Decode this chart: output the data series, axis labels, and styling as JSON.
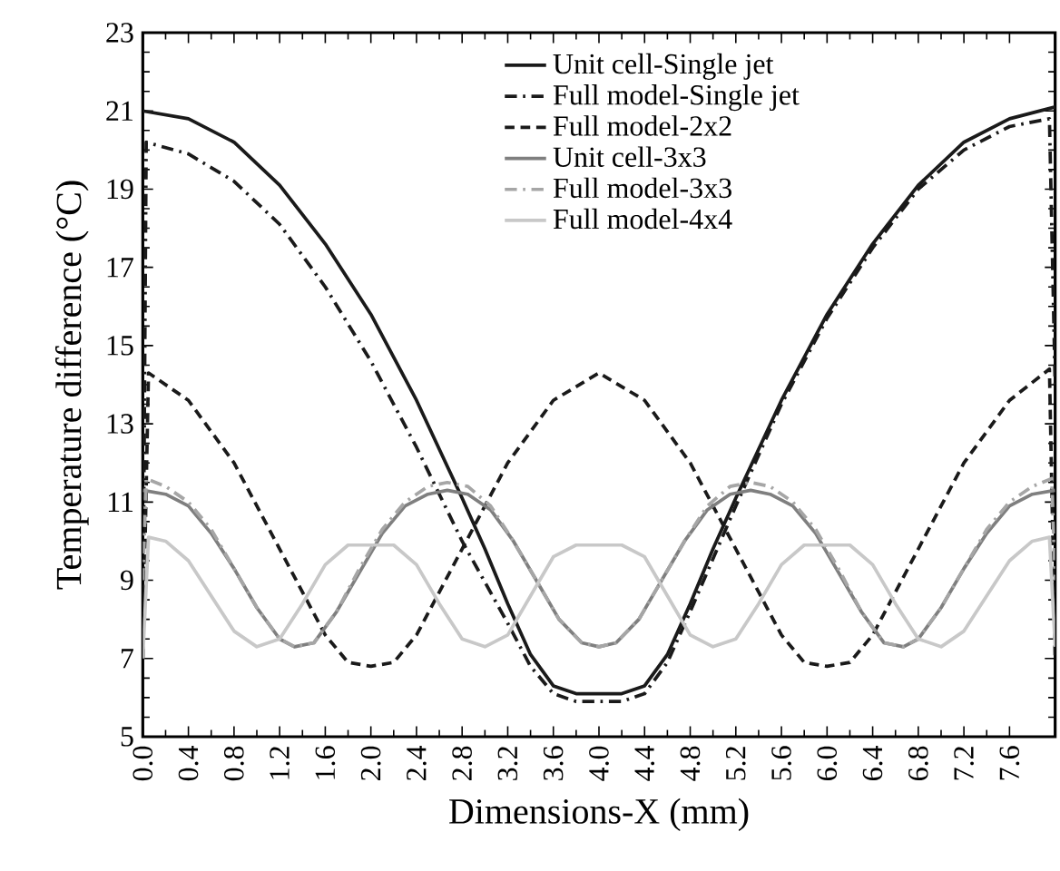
{
  "chart_data": {
    "type": "line",
    "xlabel": "Dimensions-X (mm)",
    "ylabel": "Temperature difference (°C)",
    "xlim": [
      0,
      8
    ],
    "ylim": [
      5,
      23
    ],
    "xticks": [
      {
        "value": 0,
        "label": "0.0"
      },
      0.4,
      0.8,
      1.2,
      1.6,
      {
        "value": 2,
        "label": "2.0"
      },
      2.4,
      2.8,
      3.2,
      3.6,
      {
        "value": 4,
        "label": "4.0"
      },
      4.4,
      4.8,
      5.2,
      5.6,
      {
        "value": 6,
        "label": "6.0"
      },
      6.4,
      6.8,
      7.2,
      7.6
    ],
    "yticks": [
      5,
      7,
      9,
      11,
      13,
      15,
      17,
      19,
      21,
      23
    ],
    "legend": "top",
    "grid": false,
    "marker": "none",
    "series": [
      {
        "name": "Unit cell-Single jet",
        "color": "#1a1a1a",
        "line_style": "solid",
        "x": [
          0,
          0.4,
          0.8,
          1.2,
          1.6,
          2.0,
          2.4,
          2.8,
          3.0,
          3.2,
          3.4,
          3.6,
          3.8,
          4.0,
          4.2,
          4.4,
          4.6,
          4.8,
          5.0,
          5.2,
          5.6,
          6.0,
          6.4,
          6.8,
          7.2,
          7.6,
          8.0
        ],
        "values": [
          21.0,
          20.8,
          20.2,
          19.1,
          17.6,
          15.8,
          13.6,
          11.1,
          9.8,
          8.4,
          7.1,
          6.3,
          6.1,
          6.1,
          6.1,
          6.3,
          7.1,
          8.4,
          9.8,
          11.1,
          13.6,
          15.8,
          17.6,
          19.1,
          20.2,
          20.8,
          21.1
        ]
      },
      {
        "name": "Full model-Single jet",
        "color": "#1a1a1a",
        "line_style": "dashdot",
        "x": [
          0,
          0.03,
          0.4,
          0.8,
          1.2,
          1.6,
          2.0,
          2.4,
          2.8,
          3.2,
          3.4,
          3.6,
          3.8,
          4.0,
          4.2,
          4.4,
          4.6,
          4.8,
          5.2,
          5.6,
          6.0,
          6.4,
          6.8,
          7.2,
          7.6,
          7.95,
          8.0
        ],
        "values": [
          7.0,
          20.2,
          19.9,
          19.2,
          18.1,
          16.5,
          14.6,
          12.4,
          10.0,
          7.9,
          6.8,
          6.1,
          5.9,
          5.9,
          5.9,
          6.1,
          6.9,
          8.2,
          10.9,
          13.5,
          15.7,
          17.5,
          19.0,
          20.0,
          20.6,
          20.8,
          14.0
        ]
      },
      {
        "name": "Full model-2x2",
        "color": "#1a1a1a",
        "line_style": "dashed",
        "x": [
          0,
          0.05,
          0.4,
          0.8,
          1.2,
          1.6,
          1.8,
          2.0,
          2.2,
          2.4,
          2.8,
          3.2,
          3.6,
          4.0,
          4.4,
          4.8,
          5.2,
          5.6,
          5.8,
          6.0,
          6.2,
          6.4,
          6.8,
          7.2,
          7.6,
          7.95,
          8.0
        ],
        "values": [
          7.0,
          14.3,
          13.6,
          12.0,
          9.8,
          7.6,
          6.9,
          6.8,
          6.9,
          7.6,
          9.8,
          12.0,
          13.6,
          14.3,
          13.6,
          12.0,
          9.8,
          7.6,
          6.9,
          6.8,
          6.9,
          7.6,
          9.8,
          12.0,
          13.6,
          14.4,
          7.0
        ]
      },
      {
        "name": "Unit cell-3x3",
        "color": "#7f7f7f",
        "line_style": "solid",
        "x": [
          0,
          0.2,
          0.4,
          0.6,
          0.8,
          1.0,
          1.2,
          1.33,
          1.5,
          1.7,
          1.9,
          2.1,
          2.3,
          2.5,
          2.67,
          2.85,
          3.05,
          3.25,
          3.45,
          3.65,
          3.85,
          4.0,
          4.15,
          4.35,
          4.55,
          4.75,
          4.95,
          5.15,
          5.33,
          5.5,
          5.7,
          5.9,
          6.1,
          6.3,
          6.5,
          6.67,
          6.8,
          7.0,
          7.2,
          7.4,
          7.6,
          7.8,
          8.0
        ],
        "values": [
          11.3,
          11.2,
          10.9,
          10.2,
          9.3,
          8.3,
          7.5,
          7.3,
          7.4,
          8.2,
          9.2,
          10.2,
          10.9,
          11.2,
          11.3,
          11.2,
          10.8,
          10.0,
          9.0,
          8.0,
          7.4,
          7.3,
          7.4,
          8.0,
          9.0,
          10.0,
          10.8,
          11.2,
          11.3,
          11.2,
          10.9,
          10.2,
          9.2,
          8.2,
          7.4,
          7.3,
          7.5,
          8.3,
          9.3,
          10.2,
          10.9,
          11.2,
          11.3
        ]
      },
      {
        "name": "Full model-3x3",
        "color": "#a6a6a6",
        "line_style": "dashdot",
        "x": [
          0,
          0.03,
          0.2,
          0.4,
          0.6,
          0.8,
          1.0,
          1.2,
          1.33,
          1.5,
          1.7,
          1.9,
          2.1,
          2.3,
          2.5,
          2.67,
          2.85,
          3.05,
          3.25,
          3.45,
          3.65,
          3.85,
          4.0,
          4.15,
          4.35,
          4.55,
          4.75,
          4.95,
          5.15,
          5.33,
          5.5,
          5.7,
          5.9,
          6.1,
          6.3,
          6.5,
          6.67,
          6.8,
          7.0,
          7.2,
          7.4,
          7.6,
          7.8,
          7.97,
          8.0
        ],
        "values": [
          9.0,
          11.6,
          11.4,
          11.0,
          10.3,
          9.3,
          8.3,
          7.5,
          7.3,
          7.4,
          8.2,
          9.3,
          10.3,
          11.0,
          11.4,
          11.5,
          11.4,
          10.9,
          10.0,
          9.0,
          8.0,
          7.4,
          7.3,
          7.4,
          8.0,
          9.0,
          10.0,
          10.9,
          11.4,
          11.5,
          11.4,
          11.0,
          10.3,
          9.3,
          8.2,
          7.4,
          7.3,
          7.5,
          8.3,
          9.3,
          10.3,
          11.0,
          11.4,
          11.6,
          9.0
        ]
      },
      {
        "name": "Full model-4x4",
        "color": "#c8c8c8",
        "line_style": "solid",
        "x": [
          0,
          0.05,
          0.2,
          0.4,
          0.6,
          0.8,
          1.0,
          1.2,
          1.4,
          1.6,
          1.8,
          2.0,
          2.2,
          2.4,
          2.6,
          2.8,
          3.0,
          3.2,
          3.4,
          3.6,
          3.8,
          4.0,
          4.2,
          4.4,
          4.6,
          4.8,
          5.0,
          5.2,
          5.4,
          5.6,
          5.8,
          6.0,
          6.2,
          6.4,
          6.6,
          6.8,
          7.0,
          7.2,
          7.4,
          7.6,
          7.8,
          7.95,
          8.0
        ],
        "values": [
          7.0,
          10.1,
          10.0,
          9.5,
          8.6,
          7.7,
          7.3,
          7.5,
          8.4,
          9.4,
          9.9,
          9.9,
          9.9,
          9.4,
          8.4,
          7.5,
          7.3,
          7.6,
          8.6,
          9.6,
          9.9,
          9.9,
          9.9,
          9.6,
          8.6,
          7.6,
          7.3,
          7.5,
          8.4,
          9.4,
          9.9,
          9.9,
          9.9,
          9.4,
          8.4,
          7.5,
          7.3,
          7.7,
          8.6,
          9.5,
          10.0,
          10.1,
          7.3
        ]
      }
    ]
  }
}
